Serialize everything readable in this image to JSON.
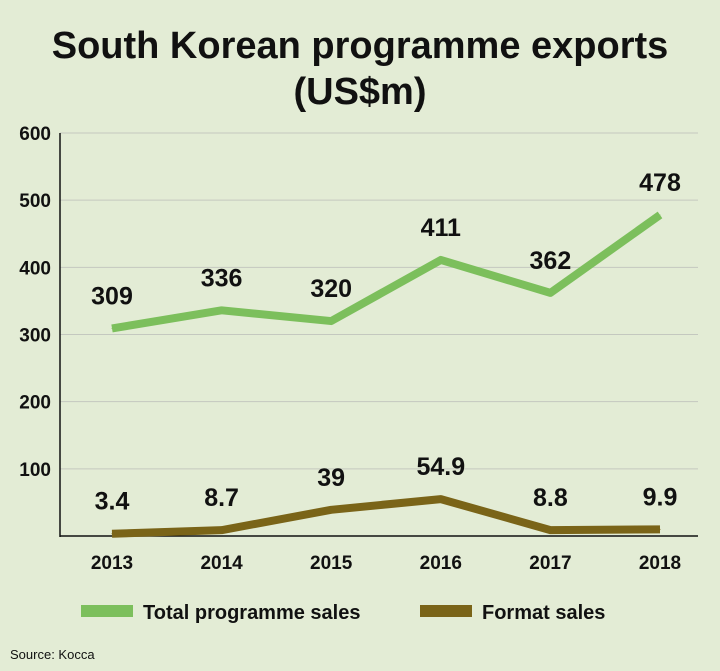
{
  "chart_data": {
    "type": "line",
    "title": "South Korean programme exports",
    "subtitle": "(US$m)",
    "x": [
      "2013",
      "2014",
      "2015",
      "2016",
      "2017",
      "2018"
    ],
    "ylim": [
      0,
      600
    ],
    "yticks": [
      "100",
      "200",
      "300",
      "400",
      "500",
      "600"
    ],
    "grid": true,
    "legend_position": "bottom",
    "series": [
      {
        "name": "Total programme sales",
        "color": "#7cbf5c",
        "values": [
          309,
          336,
          320,
          411,
          362,
          478
        ],
        "labels": [
          "309",
          "336",
          "320",
          "411",
          "362",
          "478"
        ]
      },
      {
        "name": "Format sales",
        "color": "#7a6418",
        "values": [
          3.4,
          8.7,
          39,
          54.9,
          8.8,
          9.9
        ],
        "labels": [
          "3.4",
          "8.7",
          "39",
          "54.9",
          "8.8",
          "9.9"
        ]
      }
    ],
    "source": "Source: Kocca"
  }
}
